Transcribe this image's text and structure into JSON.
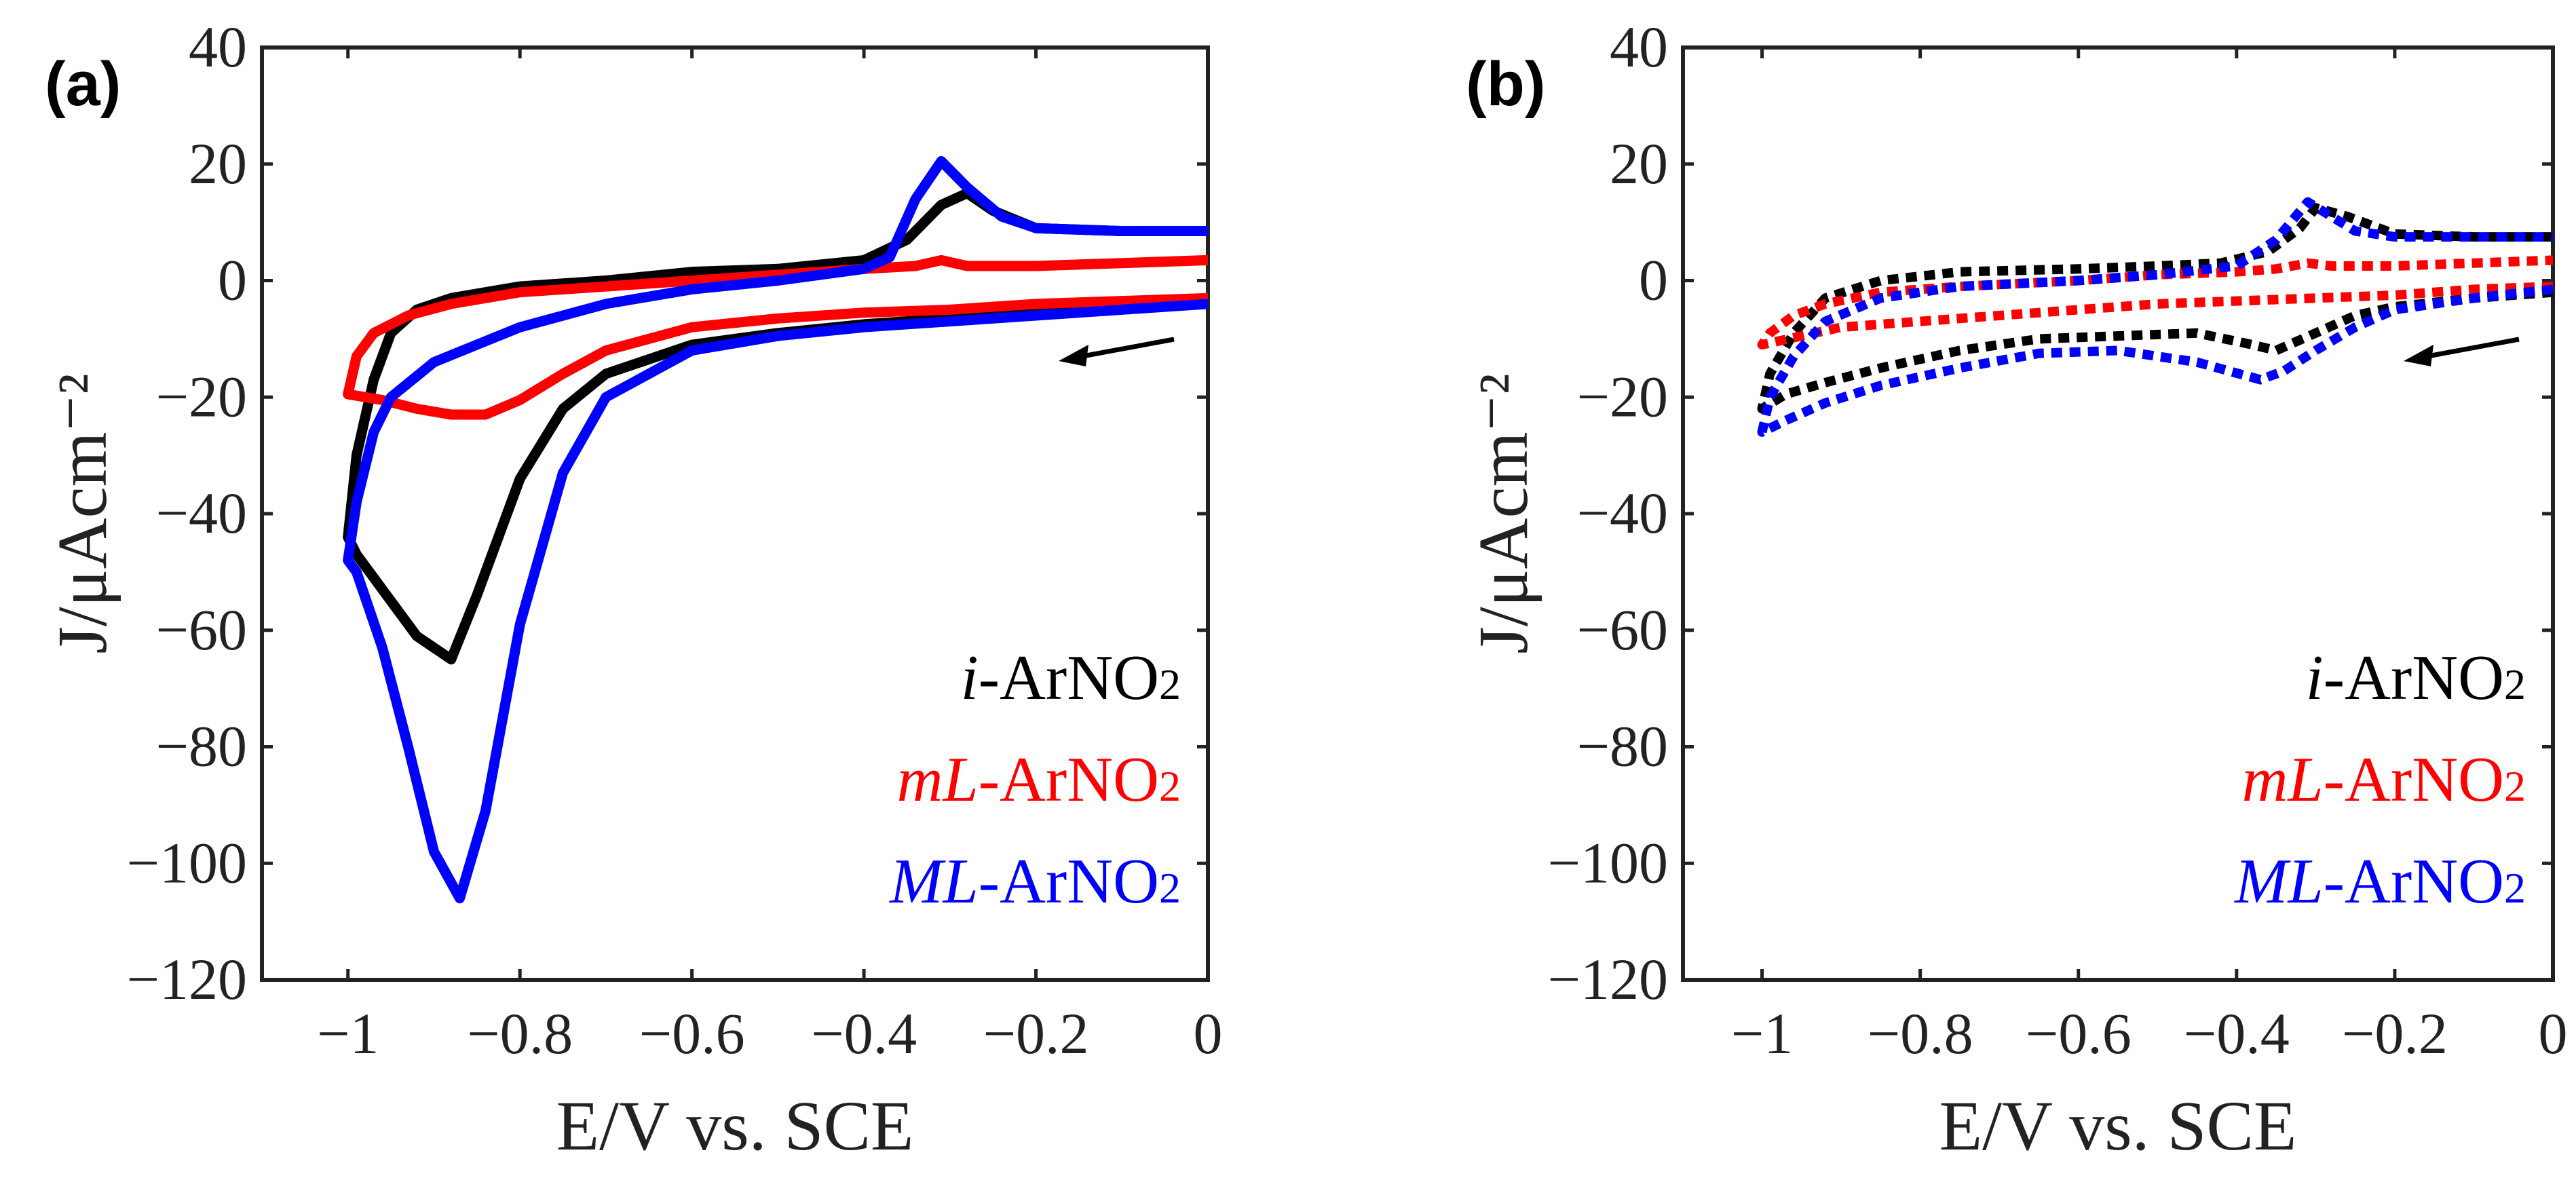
{
  "figure": {
    "xlabel": "E/V vs. SCE",
    "ylabel": "J/μAcm⁻²"
  },
  "chart_data": [
    {
      "panel": "(a)",
      "type": "line",
      "line_style": "solid",
      "xlabel": "E/V vs. SCE",
      "ylabel": "J/μAcm⁻²",
      "xlim": [
        -1.1,
        0
      ],
      "ylim": [
        -120,
        40
      ],
      "xticks": [
        -1,
        -0.8,
        -0.6,
        -0.4,
        -0.2,
        0
      ],
      "xtick_labels": [
        "−1",
        "−0.8",
        "−0.6",
        "−0.4",
        "−0.2",
        "0"
      ],
      "yticks": [
        40,
        20,
        0,
        -20,
        -40,
        -60,
        -80,
        -100,
        -120
      ],
      "ytick_labels": [
        "40",
        "20",
        "0",
        "−20",
        "−40",
        "−60",
        "−80",
        "−100",
        "−120"
      ],
      "annotation": "scan direction arrow, cathodic sweep from 0 V",
      "legend": {
        "position": "bottom-right"
      },
      "series": [
        {
          "name": "i-ArNO2",
          "italic": "i",
          "suffix": "-ArNO",
          "subscript": "2",
          "color": "#000000",
          "x": [
            0,
            -0.1,
            -0.2,
            -0.3,
            -0.4,
            -0.5,
            -0.6,
            -0.7,
            -0.75,
            -0.8,
            -0.85,
            -0.88,
            -0.92,
            -0.96,
            -0.99,
            -1.0,
            -0.99,
            -0.97,
            -0.95,
            -0.92,
            -0.88,
            -0.8,
            -0.7,
            -0.6,
            -0.5,
            -0.4,
            -0.35,
            -0.31,
            -0.28,
            -0.25,
            -0.2,
            -0.1,
            0
          ],
          "y": [
            -3,
            -4,
            -5.5,
            -6.5,
            -7.5,
            -9,
            -11,
            -16,
            -22,
            -34,
            -54,
            -65,
            -61,
            -53,
            -47,
            -44,
            -30,
            -17,
            -9,
            -5,
            -3,
            -1,
            0,
            1.5,
            2,
            3.5,
            7,
            13,
            15,
            12,
            9,
            8.5,
            8.5
          ]
        },
        {
          "name": "mL-ArNO2",
          "italic": "mL",
          "suffix": "-ArNO",
          "subscript": "2",
          "color": "#ff0000",
          "x": [
            0,
            -0.1,
            -0.2,
            -0.3,
            -0.4,
            -0.5,
            -0.6,
            -0.7,
            -0.75,
            -0.8,
            -0.84,
            -0.88,
            -0.92,
            -0.96,
            -1.0,
            -0.99,
            -0.97,
            -0.93,
            -0.88,
            -0.8,
            -0.7,
            -0.6,
            -0.5,
            -0.4,
            -0.34,
            -0.31,
            -0.28,
            -0.2,
            -0.1,
            0
          ],
          "y": [
            -3,
            -3.5,
            -4,
            -5,
            -5.5,
            -6.5,
            -8,
            -12,
            -16,
            -20.5,
            -23,
            -23,
            -22,
            -20.5,
            -19.5,
            -13,
            -9,
            -6,
            -4,
            -2,
            -1,
            0,
            1,
            2,
            2.5,
            3.5,
            2.5,
            2.5,
            3,
            3.5
          ]
        },
        {
          "name": "ML-ArNO2",
          "italic": "ML",
          "suffix": "-ArNO",
          "subscript": "2",
          "color": "#0000ff",
          "x": [
            0,
            -0.1,
            -0.2,
            -0.3,
            -0.4,
            -0.5,
            -0.6,
            -0.7,
            -0.75,
            -0.8,
            -0.84,
            -0.87,
            -0.9,
            -0.93,
            -0.96,
            -0.99,
            -1.0,
            -0.99,
            -0.97,
            -0.95,
            -0.9,
            -0.8,
            -0.7,
            -0.6,
            -0.5,
            -0.4,
            -0.37,
            -0.34,
            -0.31,
            -0.28,
            -0.24,
            -0.2,
            -0.1,
            0
          ],
          "y": [
            -4,
            -5,
            -6,
            -7,
            -8,
            -9.5,
            -12,
            -20,
            -33,
            -59,
            -91,
            -106,
            -98,
            -80,
            -63,
            -50,
            -48,
            -38,
            -26,
            -20,
            -14,
            -8,
            -4,
            -1.5,
            0,
            2,
            4,
            14,
            20.5,
            16,
            11,
            9,
            8.5,
            8.5
          ]
        }
      ]
    },
    {
      "panel": "(b)",
      "type": "line",
      "line_style": "dotted",
      "xlabel": "E/V vs. SCE",
      "ylabel": "J/μAcm⁻²",
      "xlim": [
        -1.1,
        0
      ],
      "ylim": [
        -120,
        40
      ],
      "xticks": [
        -1,
        -0.8,
        -0.6,
        -0.4,
        -0.2,
        0
      ],
      "xtick_labels": [
        "−1",
        "−0.8",
        "−0.6",
        "−0.4",
        "−0.2",
        "0"
      ],
      "yticks": [
        40,
        20,
        0,
        -20,
        -40,
        -60,
        -80,
        -100,
        -120
      ],
      "ytick_labels": [
        "40",
        "20",
        "0",
        "−20",
        "−40",
        "−60",
        "−80",
        "−100",
        "−120"
      ],
      "annotation": "scan direction arrow, cathodic sweep from 0 V",
      "legend": {
        "position": "bottom-right"
      },
      "series": [
        {
          "name": "i-ArNO2",
          "italic": "i",
          "suffix": "-ArNO",
          "subscript": "2",
          "color": "#000000",
          "x": [
            0,
            -0.1,
            -0.2,
            -0.25,
            -0.3,
            -0.35,
            -0.38,
            -0.45,
            -0.55,
            -0.65,
            -0.75,
            -0.85,
            -0.92,
            -0.97,
            -1.0,
            -0.99,
            -0.96,
            -0.92,
            -0.85,
            -0.75,
            -0.6,
            -0.5,
            -0.42,
            -0.36,
            -0.32,
            -0.3,
            -0.26,
            -0.2,
            -0.1,
            0
          ],
          "y": [
            -2,
            -3,
            -4.5,
            -6,
            -9,
            -12,
            -11,
            -9,
            -9.5,
            -10,
            -12,
            -15,
            -17.5,
            -19.5,
            -22,
            -16,
            -9,
            -3,
            0,
            1.5,
            2,
            2.5,
            3,
            5,
            9,
            12.5,
            11,
            8,
            7.5,
            7.5
          ]
        },
        {
          "name": "mL-ArNO2",
          "italic": "mL",
          "suffix": "-ArNO",
          "subscript": "2",
          "color": "#ff0000",
          "x": [
            0,
            -0.1,
            -0.2,
            -0.3,
            -0.4,
            -0.5,
            -0.6,
            -0.7,
            -0.8,
            -0.9,
            -0.95,
            -1.0,
            -0.99,
            -0.96,
            -0.92,
            -0.85,
            -0.75,
            -0.6,
            -0.5,
            -0.4,
            -0.35,
            -0.31,
            -0.28,
            -0.2,
            -0.1,
            0
          ],
          "y": [
            -1,
            -1.5,
            -2.5,
            -3,
            -3.5,
            -4,
            -5,
            -6,
            -7,
            -8,
            -9.5,
            -11,
            -9,
            -6,
            -4,
            -2,
            -1,
            0,
            1,
            1.5,
            2,
            3,
            2.5,
            2.5,
            3,
            3.5
          ]
        },
        {
          "name": "ML-ArNO2",
          "italic": "ML",
          "suffix": "-ArNO",
          "subscript": "2",
          "color": "#0000ff",
          "x": [
            0,
            -0.1,
            -0.2,
            -0.25,
            -0.3,
            -0.34,
            -0.37,
            -0.45,
            -0.55,
            -0.65,
            -0.75,
            -0.85,
            -0.92,
            -0.97,
            -1.0,
            -0.99,
            -0.96,
            -0.92,
            -0.85,
            -0.75,
            -0.6,
            -0.5,
            -0.4,
            -0.35,
            -0.31,
            -0.28,
            -0.25,
            -0.2,
            -0.1,
            0
          ],
          "y": [
            -1.5,
            -3,
            -5,
            -8,
            -12,
            -15.5,
            -17,
            -14,
            -12,
            -12.5,
            -15,
            -18,
            -21,
            -24,
            -26,
            -20,
            -13,
            -7,
            -3,
            -1,
            0,
            1,
            2.5,
            7,
            13.5,
            11,
            8.5,
            7.5,
            7.5,
            7.5
          ]
        }
      ]
    }
  ]
}
